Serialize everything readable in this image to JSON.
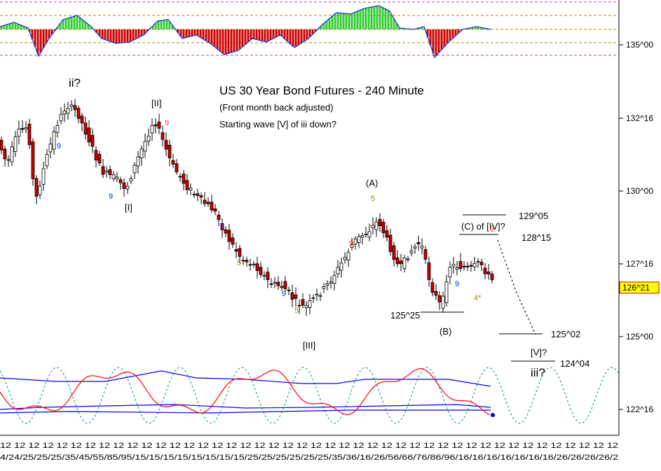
{
  "chart_data": {
    "type": "candlestick",
    "title": "US 30 Year Bond Futures - 240 Minute",
    "subtitle": "(Front month back adjusted)",
    "note": "Starting wave [V] of iii down?",
    "y_ticks": [
      "135^00",
      "132^16",
      "130^00",
      "127^16",
      "125^00",
      "122^16"
    ],
    "current_price": "126^21",
    "price_levels": [
      "129^05",
      "128^15",
      "125^25",
      "125^02",
      "124^04"
    ],
    "wave_labels": [
      "ii?",
      "[II]",
      "[I]",
      "[III]",
      "(A)",
      "(B)",
      "(C) of [IV]?",
      "[V]?",
      "iii?"
    ],
    "count_markers": [
      "9",
      "5",
      "4*"
    ],
    "x_axis_text": "12 12 12 12 12 12 12 12 12 12 12 12 12 12 12 12 12 12 12 12 12 12 12 12 12 12 12 12 12 12 12 12 12 12 12 12 12 12 12 12 12 12 12 12",
    "x_axis_dates": "4/24/25/25/25/35/45/55/85/95/15/15/15/15/15/15/15/15/25/25/25/25/25/25/35/36/16/26/56/66/76/86/96/16/16/16/16/16/16/16/26/26/26/26/2",
    "colors": {
      "up": "#ffffff",
      "down": "#cc0000",
      "wick": "#000000",
      "histogram_up": "#33cc33",
      "histogram_down": "#cc0000",
      "cycle": "#3399aa",
      "osc_red": "#ff0000",
      "osc_blue": "#0000ff"
    }
  }
}
